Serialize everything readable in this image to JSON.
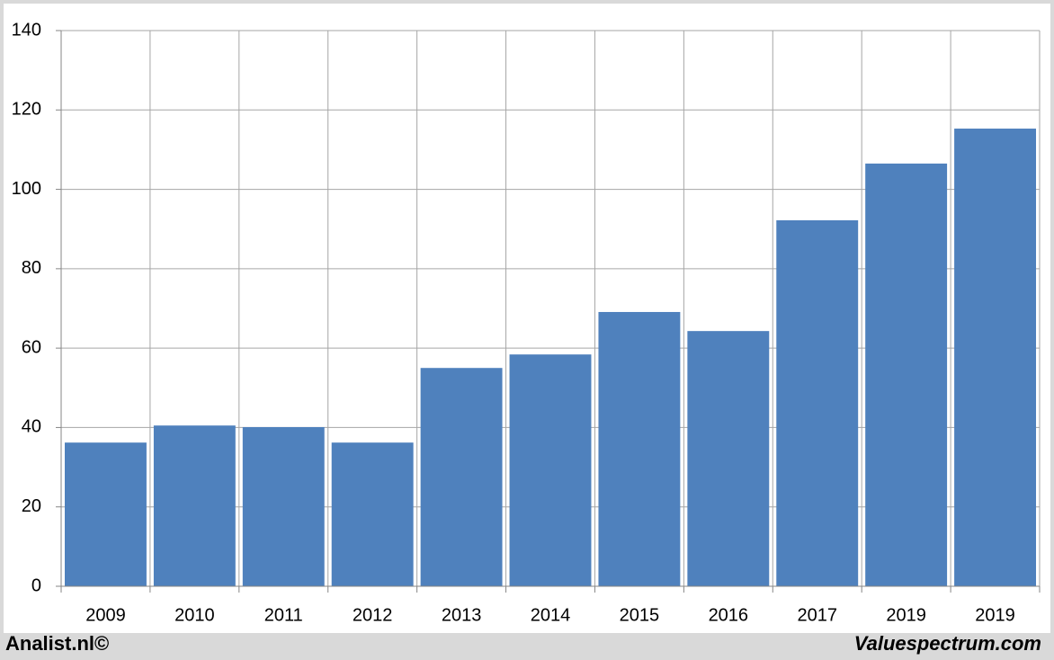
{
  "chart_data": {
    "type": "bar",
    "categories": [
      "2009",
      "2010",
      "2011",
      "2012",
      "2013",
      "2014",
      "2015",
      "2016",
      "2017",
      "2019",
      "2019"
    ],
    "values": [
      36.2,
      40.5,
      40.1,
      36.2,
      55.0,
      58.4,
      69.1,
      64.3,
      92.2,
      106.5,
      115.3
    ],
    "color": "#4f81bd",
    "ylim": [
      0,
      140
    ],
    "yticks": [
      0,
      20,
      40,
      60,
      80,
      100,
      120,
      140
    ],
    "grid": true,
    "source": "Analist.nl©",
    "credit": "Valuespectrum.com"
  }
}
